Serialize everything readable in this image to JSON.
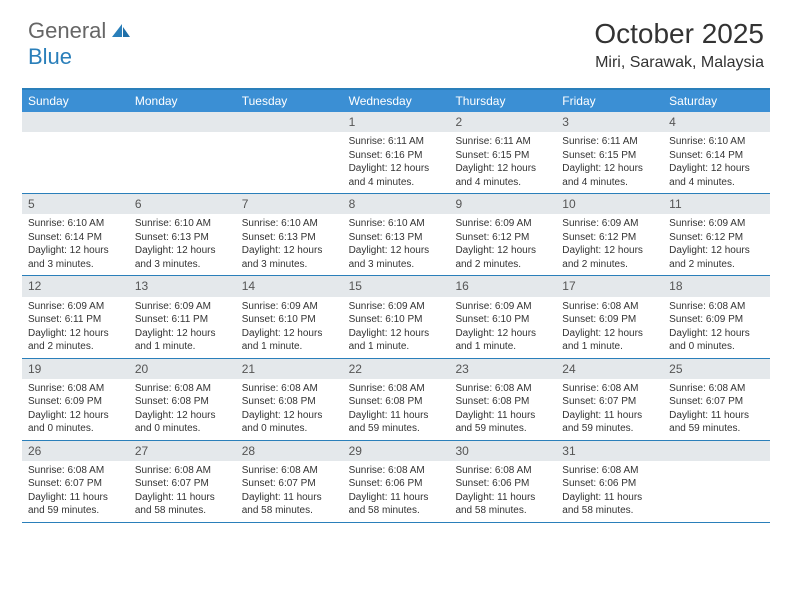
{
  "logo": {
    "text1": "General",
    "text2": "Blue"
  },
  "title": "October 2025",
  "location": "Miri, Sarawak, Malaysia",
  "colors": {
    "header_bar": "#3b8fd4",
    "border": "#2a7fba",
    "daynum_bg": "#e4e8eb",
    "text": "#333333",
    "logo_blue": "#2a7fba"
  },
  "weekdays": [
    "Sunday",
    "Monday",
    "Tuesday",
    "Wednesday",
    "Thursday",
    "Friday",
    "Saturday"
  ],
  "weeks": [
    [
      {
        "day": "",
        "sunrise": "",
        "sunset": "",
        "daylight": ""
      },
      {
        "day": "",
        "sunrise": "",
        "sunset": "",
        "daylight": ""
      },
      {
        "day": "",
        "sunrise": "",
        "sunset": "",
        "daylight": ""
      },
      {
        "day": "1",
        "sunrise": "Sunrise: 6:11 AM",
        "sunset": "Sunset: 6:16 PM",
        "daylight": "Daylight: 12 hours and 4 minutes."
      },
      {
        "day": "2",
        "sunrise": "Sunrise: 6:11 AM",
        "sunset": "Sunset: 6:15 PM",
        "daylight": "Daylight: 12 hours and 4 minutes."
      },
      {
        "day": "3",
        "sunrise": "Sunrise: 6:11 AM",
        "sunset": "Sunset: 6:15 PM",
        "daylight": "Daylight: 12 hours and 4 minutes."
      },
      {
        "day": "4",
        "sunrise": "Sunrise: 6:10 AM",
        "sunset": "Sunset: 6:14 PM",
        "daylight": "Daylight: 12 hours and 4 minutes."
      }
    ],
    [
      {
        "day": "5",
        "sunrise": "Sunrise: 6:10 AM",
        "sunset": "Sunset: 6:14 PM",
        "daylight": "Daylight: 12 hours and 3 minutes."
      },
      {
        "day": "6",
        "sunrise": "Sunrise: 6:10 AM",
        "sunset": "Sunset: 6:13 PM",
        "daylight": "Daylight: 12 hours and 3 minutes."
      },
      {
        "day": "7",
        "sunrise": "Sunrise: 6:10 AM",
        "sunset": "Sunset: 6:13 PM",
        "daylight": "Daylight: 12 hours and 3 minutes."
      },
      {
        "day": "8",
        "sunrise": "Sunrise: 6:10 AM",
        "sunset": "Sunset: 6:13 PM",
        "daylight": "Daylight: 12 hours and 3 minutes."
      },
      {
        "day": "9",
        "sunrise": "Sunrise: 6:09 AM",
        "sunset": "Sunset: 6:12 PM",
        "daylight": "Daylight: 12 hours and 2 minutes."
      },
      {
        "day": "10",
        "sunrise": "Sunrise: 6:09 AM",
        "sunset": "Sunset: 6:12 PM",
        "daylight": "Daylight: 12 hours and 2 minutes."
      },
      {
        "day": "11",
        "sunrise": "Sunrise: 6:09 AM",
        "sunset": "Sunset: 6:12 PM",
        "daylight": "Daylight: 12 hours and 2 minutes."
      }
    ],
    [
      {
        "day": "12",
        "sunrise": "Sunrise: 6:09 AM",
        "sunset": "Sunset: 6:11 PM",
        "daylight": "Daylight: 12 hours and 2 minutes."
      },
      {
        "day": "13",
        "sunrise": "Sunrise: 6:09 AM",
        "sunset": "Sunset: 6:11 PM",
        "daylight": "Daylight: 12 hours and 1 minute."
      },
      {
        "day": "14",
        "sunrise": "Sunrise: 6:09 AM",
        "sunset": "Sunset: 6:10 PM",
        "daylight": "Daylight: 12 hours and 1 minute."
      },
      {
        "day": "15",
        "sunrise": "Sunrise: 6:09 AM",
        "sunset": "Sunset: 6:10 PM",
        "daylight": "Daylight: 12 hours and 1 minute."
      },
      {
        "day": "16",
        "sunrise": "Sunrise: 6:09 AM",
        "sunset": "Sunset: 6:10 PM",
        "daylight": "Daylight: 12 hours and 1 minute."
      },
      {
        "day": "17",
        "sunrise": "Sunrise: 6:08 AM",
        "sunset": "Sunset: 6:09 PM",
        "daylight": "Daylight: 12 hours and 1 minute."
      },
      {
        "day": "18",
        "sunrise": "Sunrise: 6:08 AM",
        "sunset": "Sunset: 6:09 PM",
        "daylight": "Daylight: 12 hours and 0 minutes."
      }
    ],
    [
      {
        "day": "19",
        "sunrise": "Sunrise: 6:08 AM",
        "sunset": "Sunset: 6:09 PM",
        "daylight": "Daylight: 12 hours and 0 minutes."
      },
      {
        "day": "20",
        "sunrise": "Sunrise: 6:08 AM",
        "sunset": "Sunset: 6:08 PM",
        "daylight": "Daylight: 12 hours and 0 minutes."
      },
      {
        "day": "21",
        "sunrise": "Sunrise: 6:08 AM",
        "sunset": "Sunset: 6:08 PM",
        "daylight": "Daylight: 12 hours and 0 minutes."
      },
      {
        "day": "22",
        "sunrise": "Sunrise: 6:08 AM",
        "sunset": "Sunset: 6:08 PM",
        "daylight": "Daylight: 11 hours and 59 minutes."
      },
      {
        "day": "23",
        "sunrise": "Sunrise: 6:08 AM",
        "sunset": "Sunset: 6:08 PM",
        "daylight": "Daylight: 11 hours and 59 minutes."
      },
      {
        "day": "24",
        "sunrise": "Sunrise: 6:08 AM",
        "sunset": "Sunset: 6:07 PM",
        "daylight": "Daylight: 11 hours and 59 minutes."
      },
      {
        "day": "25",
        "sunrise": "Sunrise: 6:08 AM",
        "sunset": "Sunset: 6:07 PM",
        "daylight": "Daylight: 11 hours and 59 minutes."
      }
    ],
    [
      {
        "day": "26",
        "sunrise": "Sunrise: 6:08 AM",
        "sunset": "Sunset: 6:07 PM",
        "daylight": "Daylight: 11 hours and 59 minutes."
      },
      {
        "day": "27",
        "sunrise": "Sunrise: 6:08 AM",
        "sunset": "Sunset: 6:07 PM",
        "daylight": "Daylight: 11 hours and 58 minutes."
      },
      {
        "day": "28",
        "sunrise": "Sunrise: 6:08 AM",
        "sunset": "Sunset: 6:07 PM",
        "daylight": "Daylight: 11 hours and 58 minutes."
      },
      {
        "day": "29",
        "sunrise": "Sunrise: 6:08 AM",
        "sunset": "Sunset: 6:06 PM",
        "daylight": "Daylight: 11 hours and 58 minutes."
      },
      {
        "day": "30",
        "sunrise": "Sunrise: 6:08 AM",
        "sunset": "Sunset: 6:06 PM",
        "daylight": "Daylight: 11 hours and 58 minutes."
      },
      {
        "day": "31",
        "sunrise": "Sunrise: 6:08 AM",
        "sunset": "Sunset: 6:06 PM",
        "daylight": "Daylight: 11 hours and 58 minutes."
      },
      {
        "day": "",
        "sunrise": "",
        "sunset": "",
        "daylight": ""
      }
    ]
  ]
}
